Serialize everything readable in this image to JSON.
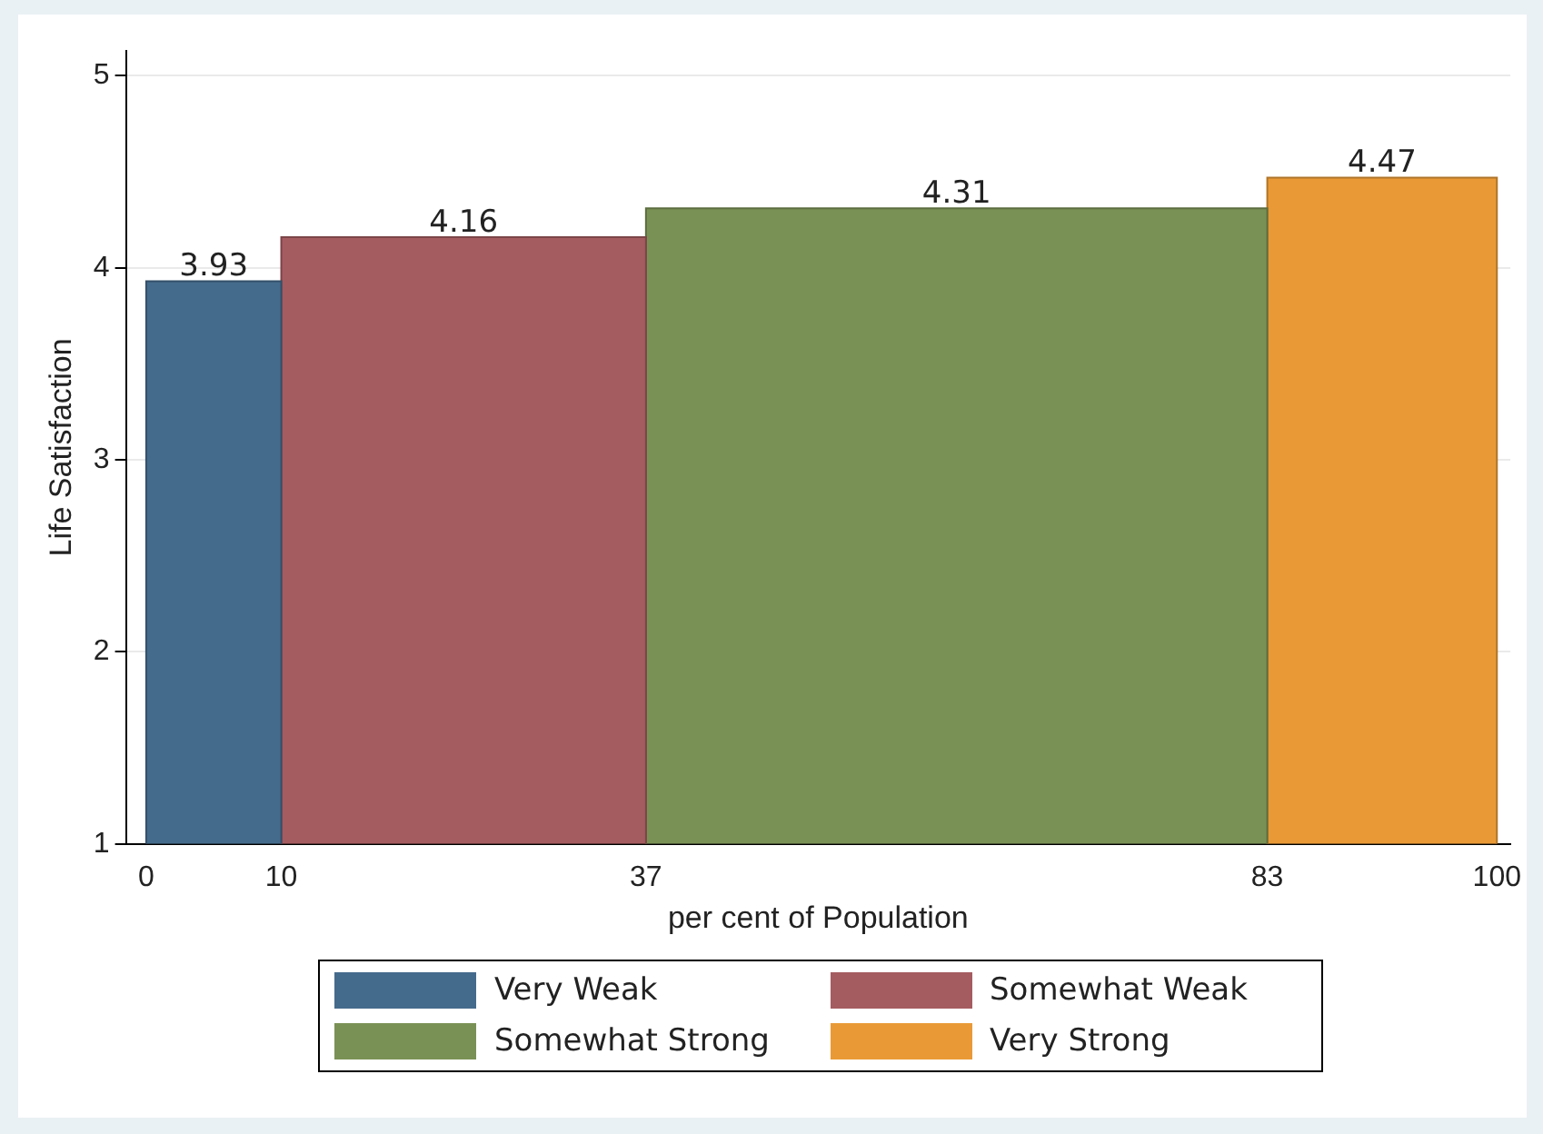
{
  "chart_data": {
    "type": "histogram",
    "xlabel": "per cent of Population",
    "ylabel": "Life Satisfaction",
    "bins": [
      0,
      10,
      37,
      83,
      100
    ],
    "series": [
      {
        "name": "Very Weak",
        "color": "#456b8c",
        "values": [
          3.93,
          null,
          null,
          null
        ]
      },
      {
        "name": "Somewhat Weak",
        "color": "#a55c60",
        "values": [
          null,
          4.16,
          null,
          null
        ]
      },
      {
        "name": "Somewhat Strong",
        "color": "#7a9155",
        "values": [
          null,
          null,
          4.31,
          null
        ]
      },
      {
        "name": "Very Strong",
        "color": "#e99a36",
        "values": [
          null,
          null,
          null,
          4.47
        ]
      }
    ],
    "xlim": [
      -1.5,
      101
    ],
    "xticks": [
      0,
      10,
      37,
      83,
      100
    ],
    "ylim": [
      1,
      5.13
    ],
    "yticks": [
      1,
      2,
      3,
      4,
      5
    ],
    "grid": "y",
    "legend": "bottom",
    "data_labels": true
  }
}
